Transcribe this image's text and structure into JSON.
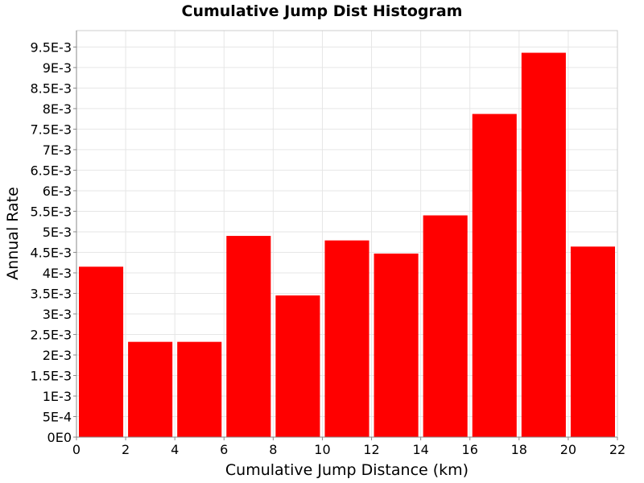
{
  "chart_data": {
    "type": "bar",
    "title": "Cumulative Jump Dist Histogram",
    "xlabel": "Cumulative Jump Distance (km)",
    "ylabel": "Annual Rate",
    "xlim": [
      0,
      22
    ],
    "ylim": [
      0,
      0.0099
    ],
    "bin_width": 2,
    "x_ticks": [
      0,
      2,
      4,
      6,
      8,
      10,
      12,
      14,
      16,
      18,
      20,
      22
    ],
    "x_tick_labels": [
      "0",
      "2",
      "4",
      "6",
      "8",
      "10",
      "12",
      "14",
      "16",
      "18",
      "20",
      "22"
    ],
    "y_ticks": [
      0,
      0.0005,
      0.001,
      0.0015,
      0.002,
      0.0025,
      0.003,
      0.0035,
      0.004,
      0.0045,
      0.005,
      0.0055,
      0.006,
      0.0065,
      0.007,
      0.0075,
      0.008,
      0.0085,
      0.009,
      0.0095
    ],
    "y_tick_labels": [
      "0E0",
      "5E-4",
      "1E-3",
      "1.5E-3",
      "2E-3",
      "2.5E-3",
      "3E-3",
      "3.5E-3",
      "4E-3",
      "4.5E-3",
      "5E-3",
      "5.5E-3",
      "6E-3",
      "6.5E-3",
      "7E-3",
      "7.5E-3",
      "8E-3",
      "8.5E-3",
      "9E-3",
      "9.5E-3"
    ],
    "bins": [
      {
        "start": 0,
        "end": 2,
        "value": 0.00415
      },
      {
        "start": 2,
        "end": 4,
        "value": 0.00232
      },
      {
        "start": 4,
        "end": 6,
        "value": 0.00232
      },
      {
        "start": 6,
        "end": 8,
        "value": 0.0049
      },
      {
        "start": 8,
        "end": 10,
        "value": 0.00345
      },
      {
        "start": 10,
        "end": 12,
        "value": 0.00479
      },
      {
        "start": 12,
        "end": 14,
        "value": 0.00447
      },
      {
        "start": 14,
        "end": 16,
        "value": 0.0054
      },
      {
        "start": 16,
        "end": 18,
        "value": 0.00787
      },
      {
        "start": 18,
        "end": 20,
        "value": 0.00936
      },
      {
        "start": 20,
        "end": 22,
        "value": 0.00464
      }
    ],
    "bar_color": "#ff0000",
    "grid": true,
    "legend": "none"
  }
}
